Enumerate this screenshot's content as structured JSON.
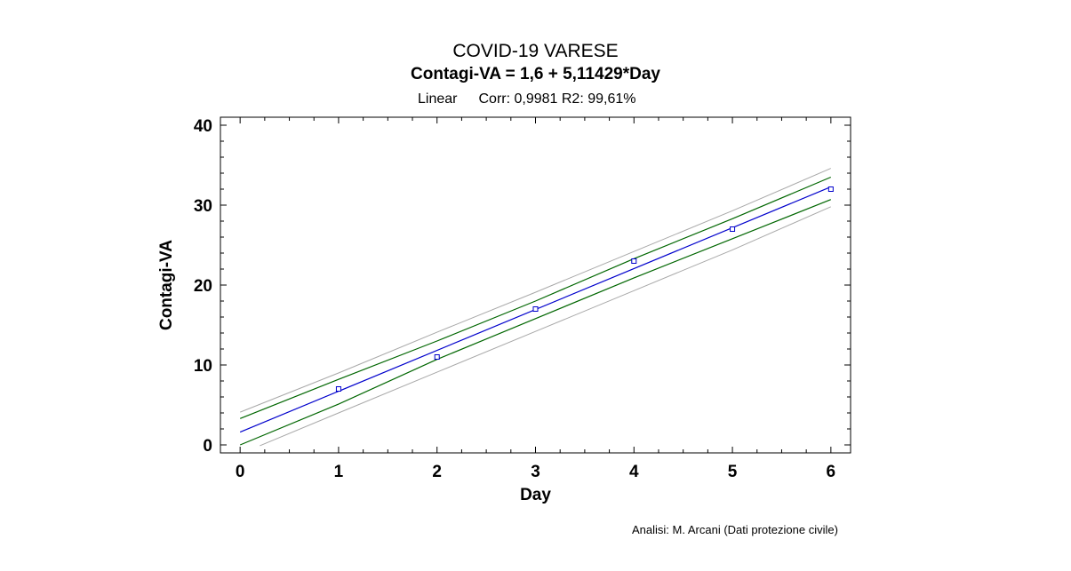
{
  "header": {
    "title": "COVID-19 VARESE",
    "subtitle": "Contagi-VA = 1,6 + 5,11429*Day",
    "model": "Linear",
    "stats": "Corr: 0,9981 R2: 99,61%"
  },
  "footer": {
    "credit": "Analisi: M. Arcani (Dati protezione civile)"
  },
  "chart_data": {
    "type": "scatter",
    "xlabel": "Day",
    "ylabel": "Contagi-VA",
    "xlim": [
      -0.2,
      6.2
    ],
    "ylim": [
      -1,
      41
    ],
    "xticks": [
      0,
      1,
      2,
      3,
      4,
      5,
      6
    ],
    "yticks": [
      0,
      10,
      20,
      30,
      40
    ],
    "grid": false,
    "points": [
      {
        "x": 1,
        "y": 7
      },
      {
        "x": 2,
        "y": 11
      },
      {
        "x": 3,
        "y": 17
      },
      {
        "x": 4,
        "y": 23
      },
      {
        "x": 5,
        "y": 27
      },
      {
        "x": 6,
        "y": 32
      }
    ],
    "fit": {
      "intercept": 1.6,
      "slope": 5.11429
    },
    "confidence_band": {
      "lower": [
        [
          0,
          0.0
        ],
        [
          1,
          5.1
        ],
        [
          2,
          10.7
        ],
        [
          3,
          15.8
        ],
        [
          4,
          20.9
        ],
        [
          5,
          25.8
        ],
        [
          6,
          30.7
        ]
      ],
      "upper": [
        [
          0,
          3.3
        ],
        [
          1,
          8.2
        ],
        [
          2,
          13.0
        ],
        [
          3,
          18.0
        ],
        [
          4,
          23.3
        ],
        [
          5,
          28.3
        ],
        [
          6,
          33.5
        ]
      ]
    },
    "prediction_band": {
      "lower": [
        [
          0.2,
          -0.1
        ],
        [
          1,
          4.0
        ],
        [
          2,
          9.1
        ],
        [
          3,
          14.2
        ],
        [
          4,
          19.3
        ],
        [
          5,
          24.4
        ],
        [
          6,
          29.8
        ]
      ],
      "upper": [
        [
          0,
          4.1
        ],
        [
          1,
          9.0
        ],
        [
          2,
          14.1
        ],
        [
          3,
          19.1
        ],
        [
          4,
          24.2
        ],
        [
          5,
          29.3
        ],
        [
          6,
          34.6
        ]
      ]
    },
    "colors": {
      "fit": "#0000cc",
      "points": "#0000cc",
      "confidence": "#006600",
      "prediction": "#a8a8a8",
      "axes": "#000000"
    }
  }
}
